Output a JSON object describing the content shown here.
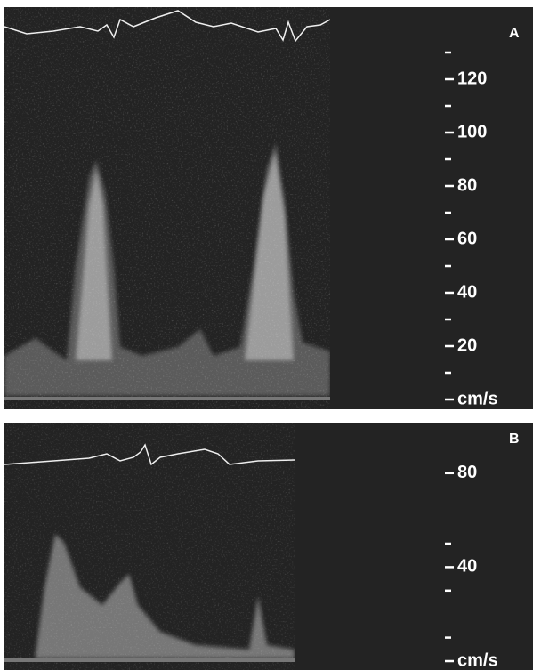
{
  "panels": [
    {
      "label": "A",
      "scale_labels": [
        120,
        100,
        80,
        60,
        40,
        20
      ],
      "unit": "cm/s"
    },
    {
      "label": "B",
      "scale_labels": [
        80,
        40
      ],
      "unit": "cm/s"
    }
  ]
}
